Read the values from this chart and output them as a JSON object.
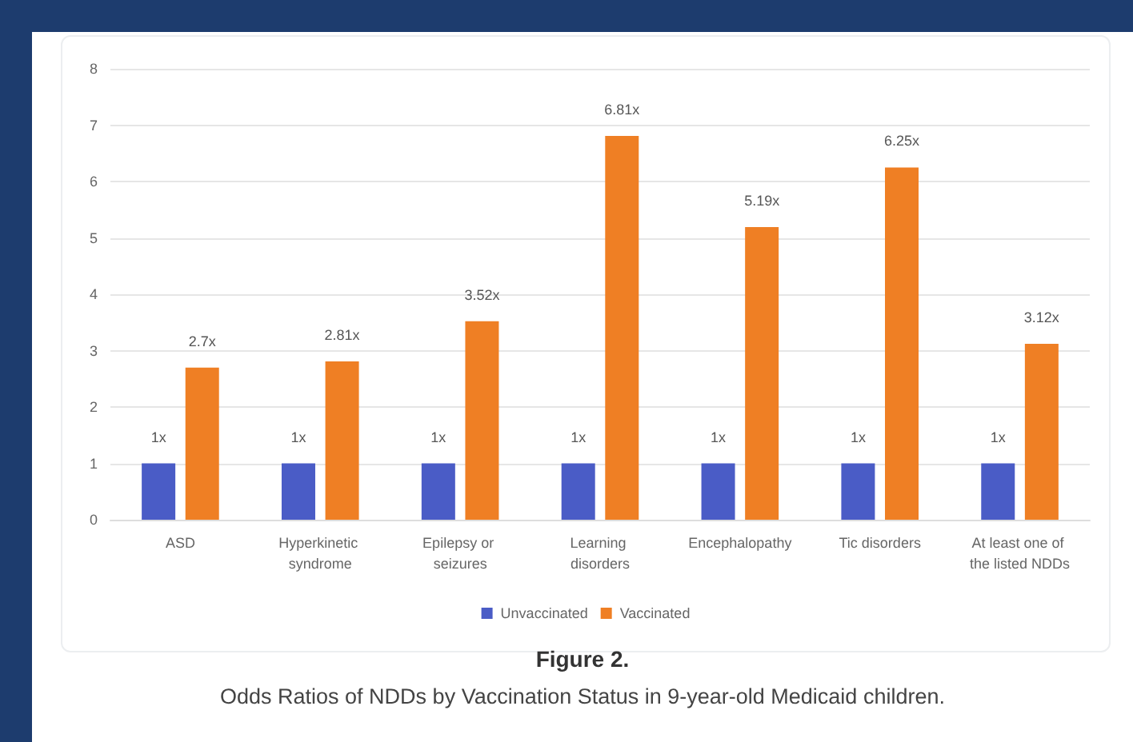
{
  "chart_data": {
    "type": "bar",
    "title": "Figure 2.",
    "subtitle": "Odds Ratios of NDDs by Vaccination Status in 9-year-old Medicaid children.",
    "categories": [
      "ASD",
      "Hyperkinetic syndrome",
      "Epilepsy or seizures",
      "Learning disorders",
      "Encephalopathy",
      "Tic disorders",
      "At least one of the listed NDDs"
    ],
    "series": [
      {
        "name": "Unvaccinated",
        "color": "#4a5cc6",
        "values": [
          1,
          1,
          1,
          1,
          1,
          1,
          1
        ],
        "value_labels": [
          "1x",
          "1x",
          "1x",
          "1x",
          "1x",
          "1x",
          "1x"
        ]
      },
      {
        "name": "Vaccinated",
        "color": "#ef7f24",
        "values": [
          2.7,
          2.81,
          3.52,
          6.81,
          5.19,
          6.25,
          3.12
        ],
        "value_labels": [
          "2.7x",
          "2.81x",
          "3.52x",
          "6.81x",
          "5.19x",
          "6.25x",
          "3.12x"
        ]
      }
    ],
    "ylim": [
      0,
      8
    ],
    "yticks": [
      0,
      1,
      2,
      3,
      4,
      5,
      6,
      7,
      8
    ],
    "grid": "y",
    "legend": "bottom"
  }
}
